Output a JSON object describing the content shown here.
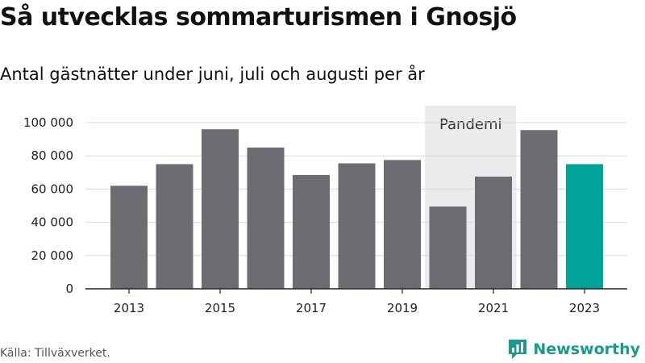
{
  "title": "Så utvecklas sommarturismen i Gnosjö",
  "subtitle": "Antal gästnätter under juni, juli och augusti per år",
  "source": "Källa: Tillväxverket.",
  "brand": {
    "name": "Newsworthy",
    "color": "#1a9a8c"
  },
  "colors": {
    "bar": "#6d6c72",
    "highlight": "#00a398",
    "band": "#ebebeb",
    "grid": "#d9d9d9",
    "axis": "#222222"
  },
  "chart_data": {
    "type": "bar",
    "title": "Så utvecklas sommarturismen i Gnosjö",
    "subtitle": "Antal gästnätter under juni, juli och augusti per år",
    "xlabel": "",
    "ylabel": "",
    "categories": [
      2013,
      2014,
      2015,
      2016,
      2017,
      2018,
      2019,
      2020,
      2021,
      2022,
      2023
    ],
    "values": [
      62000,
      75000,
      96000,
      85000,
      68500,
      75500,
      77500,
      49500,
      67500,
      95500,
      75000
    ],
    "highlight_category": 2023,
    "ylim": [
      0,
      100000
    ],
    "y_ticks": [
      0,
      20000,
      40000,
      60000,
      80000,
      100000
    ],
    "y_tick_labels": [
      "0",
      "20 000",
      "40 000",
      "60 000",
      "80 000",
      "100 000"
    ],
    "x_tick_labels": [
      "2013",
      "2015",
      "2017",
      "2019",
      "2021",
      "2023"
    ],
    "grid": true,
    "annotation": {
      "label": "Pandemi",
      "from": 2020,
      "to": 2021
    }
  }
}
